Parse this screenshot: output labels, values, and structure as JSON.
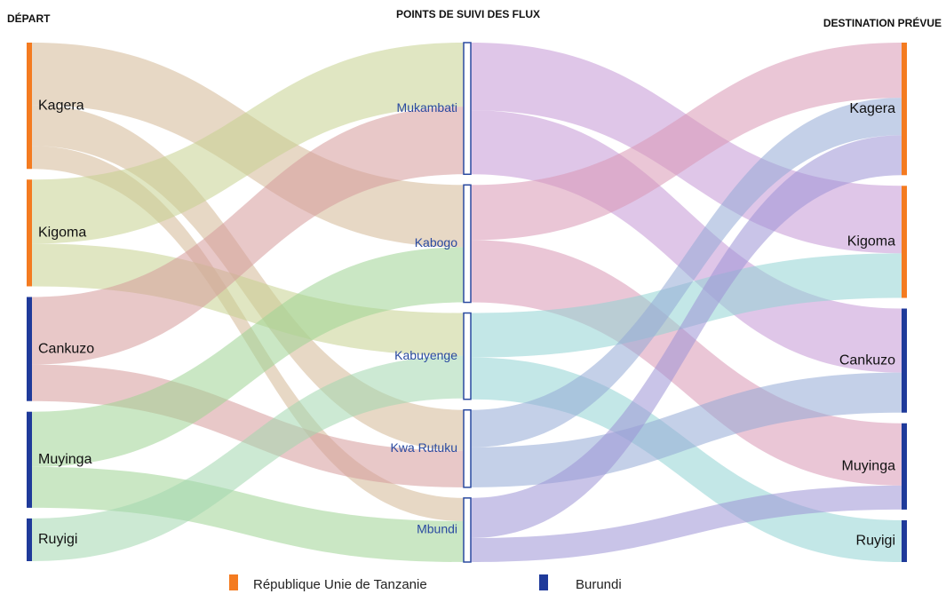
{
  "chart_data": {
    "type": "sankey",
    "column_titles": [
      "DÉPART",
      "POINTS DE SUIVI DES FLUX",
      "DESTINATION PRÉVUE"
    ],
    "legend": [
      {
        "label": "République Unie de Tanzanie",
        "color": "#f47b20"
      },
      {
        "label": "Burundi",
        "color": "#1f3a9a"
      }
    ],
    "nodes": [
      {
        "name": "Kagera",
        "column": 0,
        "group": 0
      },
      {
        "name": "Kigoma",
        "column": 0,
        "group": 0
      },
      {
        "name": "Cankuzo",
        "column": 0,
        "group": 1
      },
      {
        "name": "Muyinga",
        "column": 0,
        "group": 1
      },
      {
        "name": "Ruyigi",
        "column": 0,
        "group": 1
      },
      {
        "name": "Mukambati",
        "column": 1
      },
      {
        "name": "Kabogo",
        "column": 1
      },
      {
        "name": "Kabuyenge",
        "column": 1
      },
      {
        "name": "Kwa Rutuku",
        "column": 1
      },
      {
        "name": "Mbundi",
        "column": 1
      },
      {
        "name": "Kagera",
        "column": 2,
        "group": 0
      },
      {
        "name": "Kigoma",
        "column": 2,
        "group": 0
      },
      {
        "name": "Cankuzo",
        "column": 2,
        "group": 1
      },
      {
        "name": "Muyinga",
        "column": 2,
        "group": 1
      },
      {
        "name": "Ruyigi",
        "column": 2,
        "group": 1
      }
    ],
    "links": [
      {
        "source": 0,
        "target": 6,
        "value": 70,
        "color": "#d4b896"
      },
      {
        "source": 0,
        "target": 8,
        "value": 46,
        "color": "#d4b896"
      },
      {
        "source": 0,
        "target": 9,
        "value": 26,
        "color": "#d4b896"
      },
      {
        "source": 1,
        "target": 5,
        "value": 72,
        "color": "#c6d18f"
      },
      {
        "source": 1,
        "target": 7,
        "value": 48,
        "color": "#c6d18f"
      },
      {
        "source": 2,
        "target": 5,
        "value": 76,
        "color": "#d69a9a"
      },
      {
        "source": 2,
        "target": 8,
        "value": 41,
        "color": "#d69a9a"
      },
      {
        "source": 3,
        "target": 6,
        "value": 62,
        "color": "#9fd394"
      },
      {
        "source": 3,
        "target": 9,
        "value": 46,
        "color": "#9fd394"
      },
      {
        "source": 4,
        "target": 7,
        "value": 48,
        "color": "#a3d7ae"
      },
      {
        "source": 5,
        "target": 11,
        "value": 76,
        "color": "#c497d6"
      },
      {
        "source": 5,
        "target": 12,
        "value": 72,
        "color": "#c497d6"
      },
      {
        "source": 6,
        "target": 10,
        "value": 62,
        "color": "#d898b4"
      },
      {
        "source": 6,
        "target": 13,
        "value": 70,
        "color": "#d898b4"
      },
      {
        "source": 7,
        "target": 11,
        "value": 50,
        "color": "#92d3d3"
      },
      {
        "source": 7,
        "target": 14,
        "value": 47,
        "color": "#92d3d3"
      },
      {
        "source": 8,
        "target": 10,
        "value": 42,
        "color": "#93a9d6"
      },
      {
        "source": 8,
        "target": 12,
        "value": 45,
        "color": "#93a9d6"
      },
      {
        "source": 9,
        "target": 10,
        "value": 45,
        "color": "#9d93d6"
      },
      {
        "source": 9,
        "target": 13,
        "value": 27,
        "color": "#9d93d6"
      }
    ]
  }
}
